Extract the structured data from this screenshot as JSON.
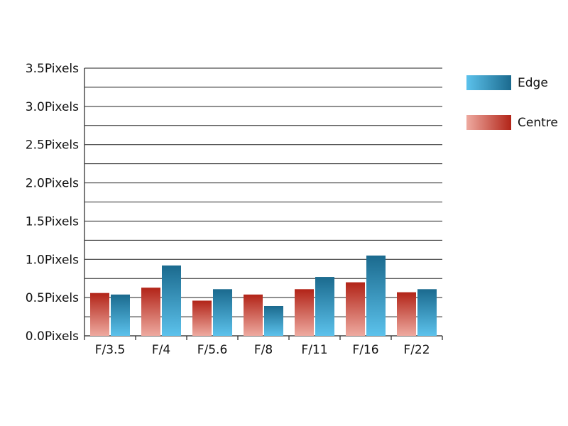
{
  "chart_data": {
    "type": "bar",
    "categories": [
      "F/3.5",
      "F/4",
      "F/5.6",
      "F/8",
      "F/11",
      "F/16",
      "F/22"
    ],
    "series": [
      {
        "name": "Centre",
        "color": "#b22418",
        "values": [
          0.56,
          0.63,
          0.46,
          0.54,
          0.61,
          0.7,
          0.57
        ]
      },
      {
        "name": "Edge",
        "color": "#1b6a8e",
        "values": [
          0.54,
          0.92,
          0.61,
          0.39,
          0.77,
          1.05,
          0.61
        ]
      }
    ],
    "ylim": [
      0,
      3.5
    ],
    "yticks": [
      {
        "value": 0,
        "label": "0.0Pixels"
      },
      {
        "value": 0.5,
        "label": "0.5Pixels"
      },
      {
        "value": 1,
        "label": "1.0Pixels"
      },
      {
        "value": 1.5,
        "label": "1.5Pixels"
      },
      {
        "value": 2,
        "label": "2.0Pixels"
      },
      {
        "value": 2.5,
        "label": "2.5Pixels"
      },
      {
        "value": 3,
        "label": "3.0Pixels"
      },
      {
        "value": 3.5,
        "label": "3.5Pixels"
      }
    ],
    "minor_yticks": [
      0.25,
      0.75,
      1.25,
      1.75,
      2.25,
      2.75,
      3.25
    ],
    "grid": true
  }
}
